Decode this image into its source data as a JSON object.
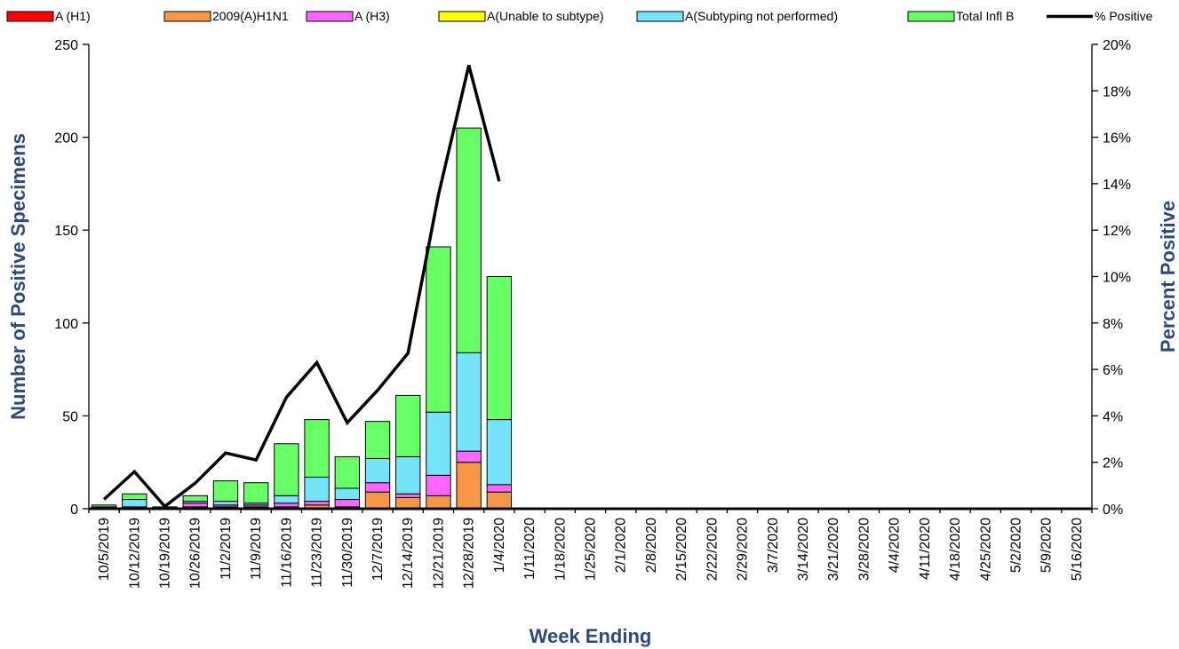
{
  "chart_data": {
    "type": "bar",
    "stacked": true,
    "title": "",
    "xlabel": "Week Ending",
    "ylabel": "Number of  Positive Specimens",
    "y2label": "Percent Positive",
    "ylim": [
      0,
      250
    ],
    "y_ticks": [
      "0",
      "50",
      "100",
      "150",
      "200",
      "250"
    ],
    "y2lim": [
      0,
      20
    ],
    "y2_ticks": [
      "0%",
      "2%",
      "4%",
      "6%",
      "8%",
      "10%",
      "12%",
      "14%",
      "16%",
      "18%",
      "20%"
    ],
    "grid": false,
    "legend_position": "top",
    "categories": [
      "10/5/2019",
      "10/12/2019",
      "10/19/2019",
      "10/26/2019",
      "11/2/2019",
      "11/9/2019",
      "11/16/2019",
      "11/23/2019",
      "11/30/2019",
      "12/7/2019",
      "12/14/2019",
      "12/21/2019",
      "12/28/2019",
      "1/4/2020",
      "1/11/2020",
      "1/18/2020",
      "1/25/2020",
      "2/1/2020",
      "2/8/2020",
      "2/15/2020",
      "2/22/2020",
      "2/29/2020",
      "3/7/2020",
      "3/14/2020",
      "3/21/2020",
      "3/28/2020",
      "4/4/2020",
      "4/11/2020",
      "4/18/2020",
      "4/25/2020",
      "5/2/2020",
      "5/9/2020",
      "5/16/2020"
    ],
    "series": [
      {
        "name": "A (H1)",
        "color": "#ff0000",
        "values": [
          0,
          0,
          0,
          0,
          0,
          0,
          0,
          0,
          0,
          0,
          0,
          0,
          0,
          0,
          null,
          null,
          null,
          null,
          null,
          null,
          null,
          null,
          null,
          null,
          null,
          null,
          null,
          null,
          null,
          null,
          null,
          null,
          null
        ]
      },
      {
        "name": "2009(A)H1N1",
        "color": "#f79646",
        "values": [
          0,
          0,
          0,
          1,
          1,
          1,
          1,
          2,
          1,
          9,
          6,
          7,
          25,
          9,
          null,
          null,
          null,
          null,
          null,
          null,
          null,
          null,
          null,
          null,
          null,
          null,
          null,
          null,
          null,
          null,
          null,
          null,
          null
        ]
      },
      {
        "name": "A (H3)",
        "color": "#ff66ff",
        "values": [
          0,
          1,
          0,
          2,
          1,
          1,
          2,
          2,
          4,
          5,
          2,
          11,
          6,
          4,
          null,
          null,
          null,
          null,
          null,
          null,
          null,
          null,
          null,
          null,
          null,
          null,
          null,
          null,
          null,
          null,
          null,
          null,
          null
        ]
      },
      {
        "name": "A(Unable to subtype)",
        "color": "#ffff00",
        "values": [
          0,
          0,
          0,
          0,
          0,
          0,
          0,
          0,
          0,
          0,
          0,
          0,
          0,
          0,
          null,
          null,
          null,
          null,
          null,
          null,
          null,
          null,
          null,
          null,
          null,
          null,
          null,
          null,
          null,
          null,
          null,
          null,
          null
        ]
      },
      {
        "name": "A(Subtyping not performed)",
        "color": "#75e3fa",
        "values": [
          1,
          4,
          0,
          1,
          2,
          1,
          4,
          13,
          6,
          13,
          20,
          34,
          53,
          35,
          null,
          null,
          null,
          null,
          null,
          null,
          null,
          null,
          null,
          null,
          null,
          null,
          null,
          null,
          null,
          null,
          null,
          null,
          null
        ]
      },
      {
        "name": "Total Infl B",
        "color": "#66ff66",
        "values": [
          1,
          3,
          1,
          3,
          11,
          11,
          28,
          31,
          17,
          20,
          33,
          89,
          121,
          77,
          null,
          null,
          null,
          null,
          null,
          null,
          null,
          null,
          null,
          null,
          null,
          null,
          null,
          null,
          null,
          null,
          null,
          null,
          null
        ]
      }
    ],
    "line_series": {
      "name": "% Positive",
      "color": "#000000",
      "axis": "right",
      "values": [
        0.4,
        1.6,
        0.1,
        1.1,
        2.4,
        2.1,
        4.8,
        6.3,
        3.7,
        5.1,
        6.7,
        13.5,
        19.1,
        14.1,
        null,
        null,
        null,
        null,
        null,
        null,
        null,
        null,
        null,
        null,
        null,
        null,
        null,
        null,
        null,
        null,
        null,
        null,
        null
      ]
    }
  }
}
